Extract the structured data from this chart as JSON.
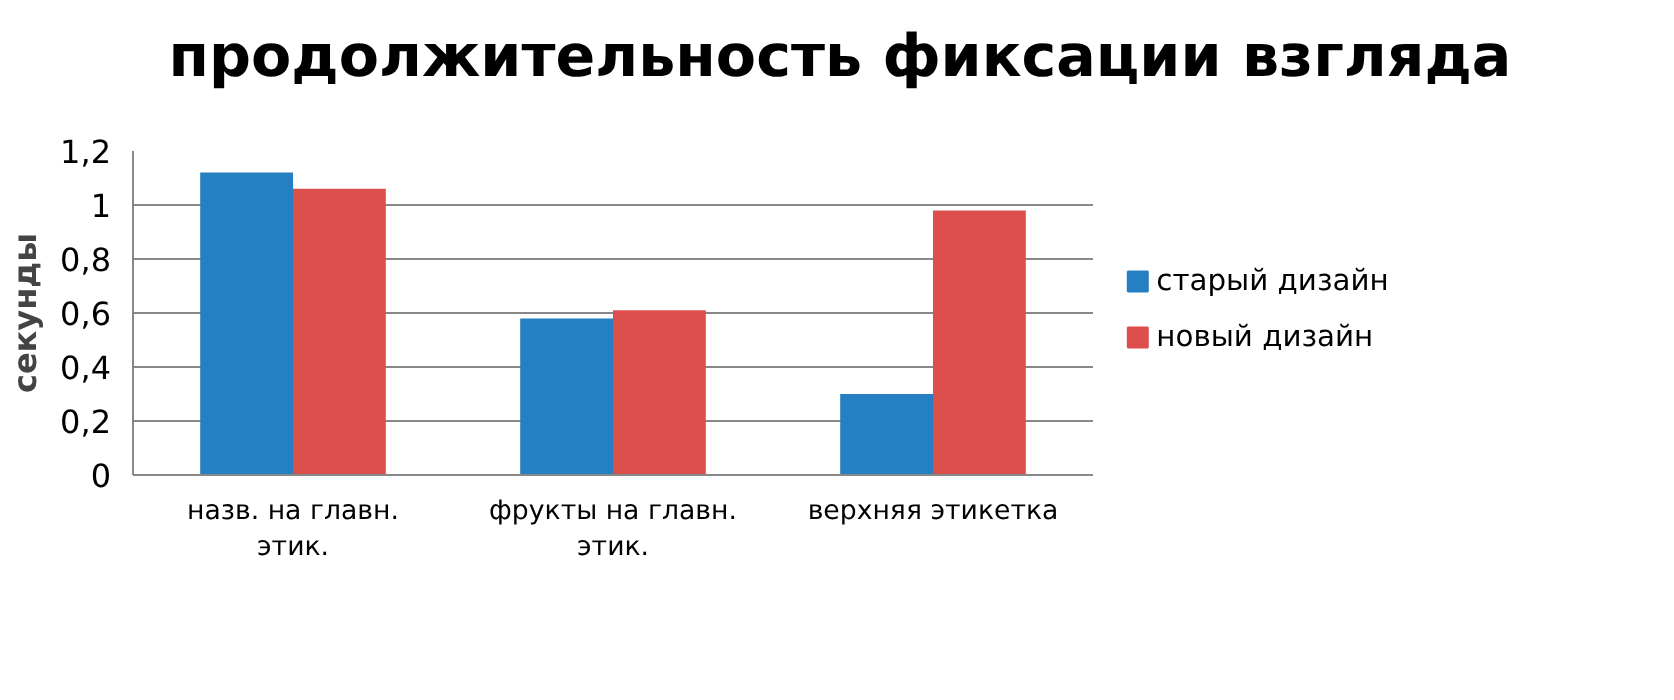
{
  "chart_data": {
    "type": "bar",
    "title": "продолжительность фиксации взгляда",
    "ylabel": "секунды",
    "categories": [
      "назв. на главн. этик.",
      "фрукты на главн. этик.",
      "верхняя этикетка"
    ],
    "series": [
      {
        "name": "старый дизайн",
        "color": "#2580c3",
        "values": [
          1.12,
          0.58,
          0.3
        ]
      },
      {
        "name": "новый дизайн",
        "color": "#dd4f4c",
        "values": [
          1.06,
          0.61,
          0.98
        ]
      }
    ],
    "ylim": [
      0,
      1.2
    ],
    "yticks": [
      {
        "value": 0,
        "label": "0"
      },
      {
        "value": 0.2,
        "label": "0,2"
      },
      {
        "value": 0.4,
        "label": "0,4"
      },
      {
        "value": 0.6,
        "label": "0,6"
      },
      {
        "value": 0.8,
        "label": "0,8"
      },
      {
        "value": 1,
        "label": "1"
      },
      {
        "value": 1.2,
        "label": "1,2"
      }
    ],
    "grid": "y",
    "legend": "right"
  }
}
